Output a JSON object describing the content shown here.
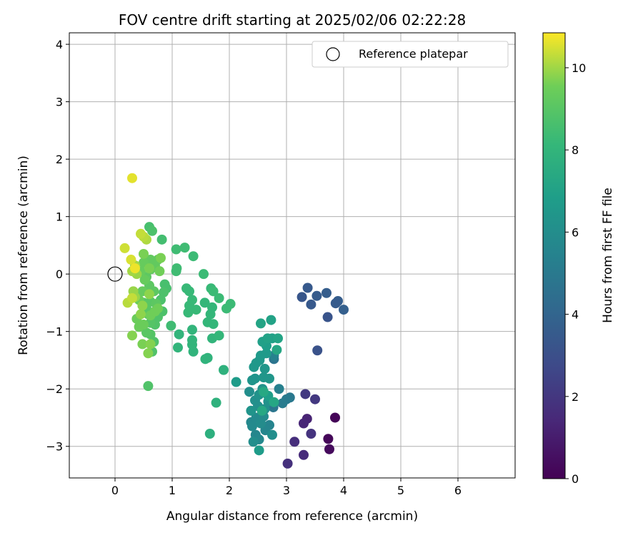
{
  "chart_data": {
    "type": "scatter",
    "title": "FOV centre drift starting at 2025/02/06 02:22:28",
    "xlabel": "Angular distance from reference (arcmin)",
    "ylabel": "Rotation from reference (arcmin)",
    "xlim": [
      -0.8,
      7.0
    ],
    "ylim": [
      -3.55,
      4.2
    ],
    "x_ticks": [
      0,
      1,
      2,
      3,
      4,
      5,
      6
    ],
    "y_ticks": [
      -3,
      -2,
      -1,
      0,
      1,
      2,
      3,
      4
    ],
    "grid": true,
    "legend": {
      "position": "top-right",
      "entries": [
        "Reference platepar"
      ]
    },
    "reference_point": {
      "x": 0,
      "y": 0,
      "label": "Reference platepar"
    },
    "colorbar": {
      "label": "Hours from first FF file",
      "colormap": "viridis",
      "range": [
        0,
        10.85
      ],
      "ticks": [
        0,
        2,
        4,
        6,
        8,
        10
      ]
    },
    "points": [
      {
        "x": 3.85,
        "y": -2.5,
        "c": 0.1
      },
      {
        "x": 3.73,
        "y": -2.87,
        "c": 0.2
      },
      {
        "x": 3.75,
        "y": -3.05,
        "c": 0.3
      },
      {
        "x": 3.36,
        "y": -2.52,
        "c": 1.2
      },
      {
        "x": 3.3,
        "y": -2.6,
        "c": 1.3
      },
      {
        "x": 3.3,
        "y": -3.15,
        "c": 1.5
      },
      {
        "x": 3.14,
        "y": -2.92,
        "c": 1.6
      },
      {
        "x": 3.02,
        "y": -3.3,
        "c": 1.7
      },
      {
        "x": 3.43,
        "y": -2.78,
        "c": 1.8
      },
      {
        "x": 3.5,
        "y": -2.18,
        "c": 2.0
      },
      {
        "x": 3.33,
        "y": -2.09,
        "c": 2.1
      },
      {
        "x": 3.54,
        "y": -1.33,
        "c": 3.1
      },
      {
        "x": 3.72,
        "y": -0.75,
        "c": 3.2
      },
      {
        "x": 3.27,
        "y": -0.4,
        "c": 3.3
      },
      {
        "x": 3.37,
        "y": -0.24,
        "c": 3.4
      },
      {
        "x": 3.53,
        "y": -0.38,
        "c": 3.5
      },
      {
        "x": 3.43,
        "y": -0.53,
        "c": 3.4
      },
      {
        "x": 3.7,
        "y": -0.33,
        "c": 3.6
      },
      {
        "x": 3.9,
        "y": -0.47,
        "c": 3.6
      },
      {
        "x": 3.86,
        "y": -0.51,
        "c": 3.5
      },
      {
        "x": 4.0,
        "y": -0.62,
        "c": 3.7
      },
      {
        "x": 2.78,
        "y": -1.48,
        "c": 4.7
      },
      {
        "x": 2.77,
        "y": -2.32,
        "c": 4.8
      },
      {
        "x": 3.06,
        "y": -2.15,
        "c": 4.9
      },
      {
        "x": 3.0,
        "y": -2.18,
        "c": 5.0
      },
      {
        "x": 2.93,
        "y": -2.25,
        "c": 5.1
      },
      {
        "x": 2.87,
        "y": -2.0,
        "c": 5.3
      },
      {
        "x": 2.78,
        "y": -1.42,
        "c": 5.4
      },
      {
        "x": 2.7,
        "y": -2.63,
        "c": 5.5
      },
      {
        "x": 2.63,
        "y": -2.72,
        "c": 5.6
      },
      {
        "x": 2.46,
        "y": -2.8,
        "c": 5.6
      },
      {
        "x": 2.52,
        "y": -2.88,
        "c": 5.7
      },
      {
        "x": 2.38,
        "y": -2.58,
        "c": 5.7
      },
      {
        "x": 2.4,
        "y": -2.65,
        "c": 5.8
      },
      {
        "x": 2.47,
        "y": -2.5,
        "c": 5.8
      },
      {
        "x": 2.55,
        "y": -2.6,
        "c": 5.9
      },
      {
        "x": 2.6,
        "y": -2.48,
        "c": 5.9
      },
      {
        "x": 2.75,
        "y": -2.8,
        "c": 6.0
      },
      {
        "x": 2.42,
        "y": -2.92,
        "c": 6.0
      },
      {
        "x": 2.35,
        "y": -2.05,
        "c": 6.0
      },
      {
        "x": 2.45,
        "y": -2.2,
        "c": 6.1
      },
      {
        "x": 2.5,
        "y": -2.3,
        "c": 6.1
      },
      {
        "x": 2.62,
        "y": -2.35,
        "c": 6.1
      },
      {
        "x": 2.68,
        "y": -2.22,
        "c": 6.2
      },
      {
        "x": 2.52,
        "y": -2.1,
        "c": 6.2
      },
      {
        "x": 2.58,
        "y": -2.0,
        "c": 6.2
      },
      {
        "x": 2.38,
        "y": -2.38,
        "c": 6.3
      },
      {
        "x": 2.45,
        "y": -1.82,
        "c": 6.3
      },
      {
        "x": 2.4,
        "y": -1.85,
        "c": 6.3
      },
      {
        "x": 2.6,
        "y": -1.8,
        "c": 6.4
      },
      {
        "x": 2.7,
        "y": -1.82,
        "c": 6.4
      },
      {
        "x": 2.62,
        "y": -1.65,
        "c": 6.4
      },
      {
        "x": 2.53,
        "y": -1.5,
        "c": 6.5
      },
      {
        "x": 2.47,
        "y": -1.55,
        "c": 6.5
      },
      {
        "x": 2.43,
        "y": -1.62,
        "c": 6.5
      },
      {
        "x": 2.55,
        "y": -1.42,
        "c": 6.6
      },
      {
        "x": 2.65,
        "y": -1.38,
        "c": 6.6
      },
      {
        "x": 2.12,
        "y": -1.88,
        "c": 6.7
      },
      {
        "x": 2.52,
        "y": -3.07,
        "c": 6.7
      },
      {
        "x": 2.68,
        "y": -2.12,
        "c": 6.8
      },
      {
        "x": 2.65,
        "y": -1.25,
        "c": 6.8
      },
      {
        "x": 2.75,
        "y": -1.12,
        "c": 6.9
      },
      {
        "x": 2.58,
        "y": -1.18,
        "c": 6.9
      },
      {
        "x": 2.67,
        "y": -1.12,
        "c": 7.0
      },
      {
        "x": 2.73,
        "y": -0.8,
        "c": 7.0
      },
      {
        "x": 2.55,
        "y": -0.86,
        "c": 7.1
      },
      {
        "x": 2.85,
        "y": -1.12,
        "c": 7.1
      },
      {
        "x": 2.83,
        "y": -1.32,
        "c": 7.2
      },
      {
        "x": 2.78,
        "y": -2.23,
        "c": 7.2
      },
      {
        "x": 2.57,
        "y": -2.38,
        "c": 7.3
      },
      {
        "x": 2.6,
        "y": -2.05,
        "c": 7.3
      },
      {
        "x": 1.66,
        "y": -2.78,
        "c": 7.7
      },
      {
        "x": 1.77,
        "y": -2.24,
        "c": 7.8
      },
      {
        "x": 1.9,
        "y": -1.67,
        "c": 7.8
      },
      {
        "x": 1.62,
        "y": -1.46,
        "c": 7.9
      },
      {
        "x": 1.58,
        "y": -1.48,
        "c": 7.9
      },
      {
        "x": 1.37,
        "y": -1.35,
        "c": 7.9
      },
      {
        "x": 1.35,
        "y": -1.23,
        "c": 8.0
      },
      {
        "x": 1.1,
        "y": -1.28,
        "c": 8.0
      },
      {
        "x": 1.12,
        "y": -1.05,
        "c": 8.0
      },
      {
        "x": 1.35,
        "y": -0.97,
        "c": 8.0
      },
      {
        "x": 1.35,
        "y": -1.15,
        "c": 8.0
      },
      {
        "x": 1.7,
        "y": -1.12,
        "c": 8.0
      },
      {
        "x": 1.82,
        "y": -1.07,
        "c": 8.1
      },
      {
        "x": 1.72,
        "y": -0.87,
        "c": 8.1
      },
      {
        "x": 1.62,
        "y": -0.84,
        "c": 8.1
      },
      {
        "x": 1.67,
        "y": -0.7,
        "c": 8.1
      },
      {
        "x": 1.7,
        "y": -0.58,
        "c": 8.1
      },
      {
        "x": 1.57,
        "y": -0.5,
        "c": 8.1
      },
      {
        "x": 1.42,
        "y": -0.62,
        "c": 8.2
      },
      {
        "x": 1.3,
        "y": -0.55,
        "c": 8.2
      },
      {
        "x": 1.28,
        "y": -0.67,
        "c": 8.2
      },
      {
        "x": 1.35,
        "y": -0.45,
        "c": 8.2
      },
      {
        "x": 1.25,
        "y": -0.25,
        "c": 8.2
      },
      {
        "x": 1.3,
        "y": -0.3,
        "c": 8.2
      },
      {
        "x": 1.68,
        "y": -0.25,
        "c": 8.2
      },
      {
        "x": 1.72,
        "y": -0.3,
        "c": 8.3
      },
      {
        "x": 1.82,
        "y": -0.42,
        "c": 8.3
      },
      {
        "x": 1.95,
        "y": -0.6,
        "c": 8.3
      },
      {
        "x": 2.02,
        "y": -0.52,
        "c": 8.3
      },
      {
        "x": 1.55,
        "y": 0.0,
        "c": 8.3
      },
      {
        "x": 1.37,
        "y": 0.31,
        "c": 8.3
      },
      {
        "x": 1.22,
        "y": 0.46,
        "c": 8.4
      },
      {
        "x": 1.07,
        "y": 0.43,
        "c": 8.4
      },
      {
        "x": 1.08,
        "y": 0.1,
        "c": 8.4
      },
      {
        "x": 1.07,
        "y": 0.05,
        "c": 8.4
      },
      {
        "x": 0.98,
        "y": -0.9,
        "c": 8.4
      },
      {
        "x": 0.82,
        "y": 0.6,
        "c": 8.5
      },
      {
        "x": 0.6,
        "y": 0.82,
        "c": 8.6
      },
      {
        "x": 0.65,
        "y": 0.75,
        "c": 8.7
      },
      {
        "x": 0.58,
        "y": -1.95,
        "c": 8.8
      },
      {
        "x": 0.65,
        "y": -1.35,
        "c": 8.8
      },
      {
        "x": 0.68,
        "y": -1.18,
        "c": 8.8
      },
      {
        "x": 0.62,
        "y": -1.05,
        "c": 8.9
      },
      {
        "x": 0.55,
        "y": -1.02,
        "c": 9.0
      },
      {
        "x": 0.87,
        "y": -0.18,
        "c": 8.6
      },
      {
        "x": 0.9,
        "y": -0.25,
        "c": 8.6
      },
      {
        "x": 0.85,
        "y": -0.32,
        "c": 8.7
      },
      {
        "x": 0.8,
        "y": -0.45,
        "c": 8.7
      },
      {
        "x": 0.83,
        "y": -0.65,
        "c": 8.7
      },
      {
        "x": 0.75,
        "y": -0.75,
        "c": 8.8
      },
      {
        "x": 0.7,
        "y": -0.88,
        "c": 8.8
      },
      {
        "x": 0.62,
        "y": -0.85,
        "c": 8.9
      },
      {
        "x": 0.58,
        "y": -0.7,
        "c": 8.9
      },
      {
        "x": 0.55,
        "y": -0.6,
        "c": 9.0
      },
      {
        "x": 0.5,
        "y": -0.5,
        "c": 9.0
      },
      {
        "x": 0.62,
        "y": -0.48,
        "c": 9.0
      },
      {
        "x": 0.72,
        "y": -0.52,
        "c": 9.1
      },
      {
        "x": 0.68,
        "y": -0.3,
        "c": 9.1
      },
      {
        "x": 0.6,
        "y": -0.2,
        "c": 9.1
      },
      {
        "x": 0.55,
        "y": -0.05,
        "c": 9.1
      },
      {
        "x": 0.62,
        "y": 0.08,
        "c": 9.2
      },
      {
        "x": 0.7,
        "y": 0.15,
        "c": 9.2
      },
      {
        "x": 0.75,
        "y": 0.25,
        "c": 9.2
      },
      {
        "x": 0.62,
        "y": 0.25,
        "c": 9.2
      },
      {
        "x": 0.5,
        "y": 0.2,
        "c": 9.3
      },
      {
        "x": 0.45,
        "y": 0.05,
        "c": 9.3
      },
      {
        "x": 0.52,
        "y": -0.1,
        "c": 9.3
      },
      {
        "x": 0.48,
        "y": -0.3,
        "c": 9.3
      },
      {
        "x": 0.42,
        "y": -0.45,
        "c": 9.4
      },
      {
        "x": 0.38,
        "y": -0.78,
        "c": 9.4
      },
      {
        "x": 0.42,
        "y": -0.92,
        "c": 9.4
      },
      {
        "x": 0.5,
        "y": -0.88,
        "c": 9.4
      },
      {
        "x": 0.62,
        "y": -0.72,
        "c": 9.5
      },
      {
        "x": 0.7,
        "y": -0.65,
        "c": 9.5
      },
      {
        "x": 0.75,
        "y": -0.6,
        "c": 9.5
      },
      {
        "x": 0.78,
        "y": 0.05,
        "c": 9.5
      },
      {
        "x": 0.8,
        "y": 0.28,
        "c": 9.6
      },
      {
        "x": 0.6,
        "y": 0.1,
        "c": 9.6
      },
      {
        "x": 0.5,
        "y": 0.35,
        "c": 9.6
      },
      {
        "x": 0.48,
        "y": -1.22,
        "c": 9.6
      },
      {
        "x": 0.62,
        "y": -1.22,
        "c": 9.7
      },
      {
        "x": 0.58,
        "y": -1.38,
        "c": 9.7
      },
      {
        "x": 0.3,
        "y": -1.07,
        "c": 9.7
      },
      {
        "x": 0.6,
        "y": -0.35,
        "c": 9.8
      },
      {
        "x": 0.48,
        "y": -0.55,
        "c": 9.8
      },
      {
        "x": 0.45,
        "y": -0.7,
        "c": 9.8
      },
      {
        "x": 0.35,
        "y": -0.4,
        "c": 9.9
      },
      {
        "x": 0.32,
        "y": -0.3,
        "c": 9.9
      },
      {
        "x": 0.38,
        "y": 0.0,
        "c": 9.9
      },
      {
        "x": 0.35,
        "y": 0.15,
        "c": 10.0
      },
      {
        "x": 0.3,
        "y": 0.05,
        "c": 10.0
      },
      {
        "x": 0.55,
        "y": 0.6,
        "c": 10.1
      },
      {
        "x": 0.5,
        "y": 0.65,
        "c": 10.2
      },
      {
        "x": 0.45,
        "y": 0.7,
        "c": 10.3
      },
      {
        "x": 0.22,
        "y": -0.5,
        "c": 10.2
      },
      {
        "x": 0.3,
        "y": -0.42,
        "c": 10.3
      },
      {
        "x": 0.17,
        "y": 0.45,
        "c": 10.4
      },
      {
        "x": 0.28,
        "y": 0.25,
        "c": 10.5
      },
      {
        "x": 0.3,
        "y": 1.67,
        "c": 10.6
      },
      {
        "x": 0.35,
        "y": 0.1,
        "c": 10.7
      }
    ]
  }
}
